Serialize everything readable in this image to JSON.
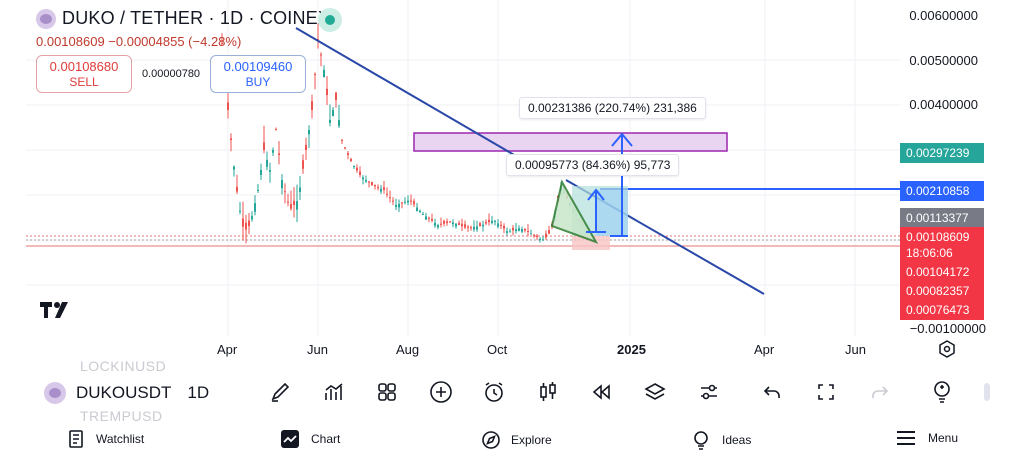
{
  "header": {
    "title": "DUKO / TETHER · 1D · COINEX",
    "price_line": "0.00108609  −0.00004855 (−4.28%)",
    "sell": {
      "price": "0.00108680",
      "label": "SELL"
    },
    "spread": "0.00000780",
    "buy": {
      "price": "0.00109460",
      "label": "BUY"
    }
  },
  "price_axis": {
    "labels": [
      "0.00600000",
      "0.00500000",
      "0.00400000",
      "−0.00100000"
    ],
    "badges": [
      {
        "text": "0.00297239",
        "color": "#26a69a"
      },
      {
        "text": "0.00210858",
        "color": "#2962ff"
      },
      {
        "text": "0.00113377",
        "color": "#787b86"
      },
      {
        "text": "0.00108609",
        "color": "#f23645"
      },
      {
        "text": "18:06:06",
        "color": "#f23645"
      },
      {
        "text": "0.00104172",
        "color": "#f23645"
      },
      {
        "text": "0.00082357",
        "color": "#f23645"
      },
      {
        "text": "0.00076473",
        "color": "#f23645"
      }
    ]
  },
  "time_axis": {
    "labels": [
      "Apr",
      "Jun",
      "Aug",
      "Oct",
      "2025",
      "Apr",
      "Jun"
    ]
  },
  "drawings": {
    "label_top": "0.00231386 (220.74%) 231,386",
    "label_mid": "0.00095773 (84.36%) 95,773"
  },
  "toolbar": {
    "symbol": "DUKOUSDT",
    "interval": "1D",
    "ghost_above": "LOCKINUSD",
    "ghost_below": "TREMPUSD",
    "tools": [
      "brush-icon",
      "indicators-icon",
      "layout-icon",
      "add-icon",
      "alert-icon",
      "candles-icon",
      "replay-icon",
      "layers-icon",
      "settings-sliders-icon",
      "undo-icon",
      "fullscreen-icon",
      "redo-icon",
      "ideas-bulb-icon"
    ]
  },
  "nav": {
    "watchlist": "Watchlist",
    "chart": "Chart",
    "explore": "Explore",
    "ideas": "Ideas",
    "menu": "Menu"
  },
  "colors": {
    "up": "#26a69a",
    "down": "#ef5350",
    "trend": "#2948a8",
    "rect": "#9c27b0"
  }
}
